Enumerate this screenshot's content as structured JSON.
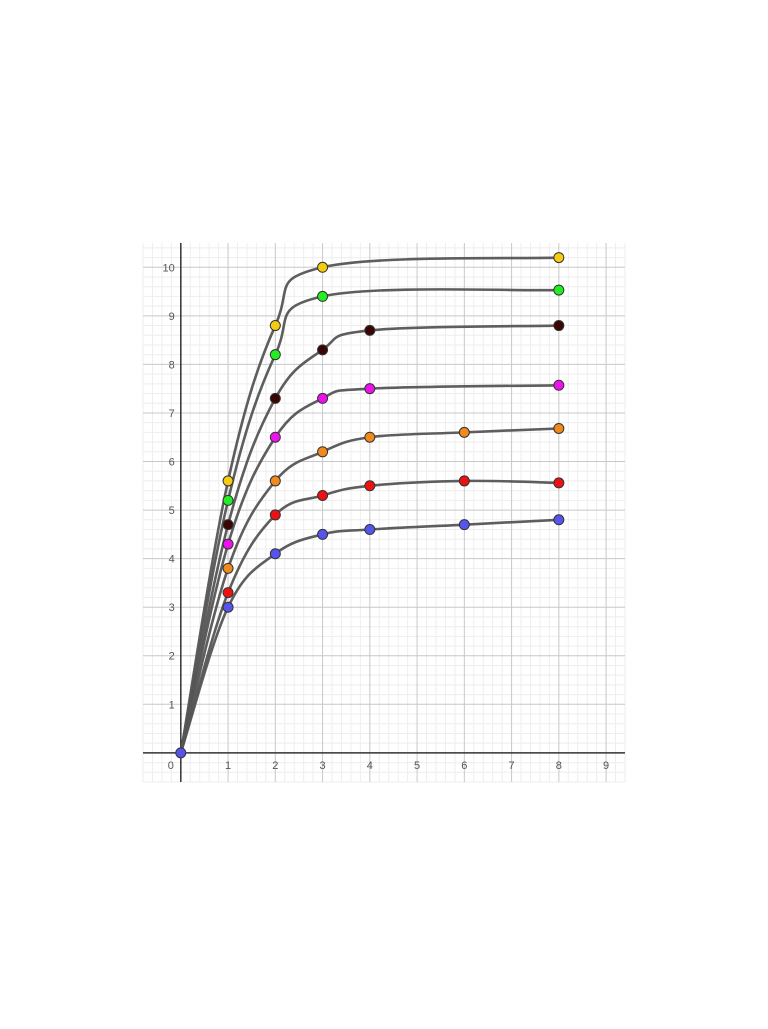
{
  "chart_data": {
    "type": "line",
    "title": "",
    "xlabel": "",
    "ylabel": "",
    "xlim": [
      -0.8,
      9.4
    ],
    "ylim": [
      -0.6,
      10.5
    ],
    "grid": true,
    "x_ticks": [
      "0",
      "1",
      "2",
      "3",
      "4",
      "5",
      "6",
      "7",
      "8",
      "9"
    ],
    "y_ticks": [
      "1",
      "2",
      "3",
      "4",
      "5",
      "6",
      "7",
      "8",
      "9",
      "10"
    ],
    "series": [
      {
        "color": "#5555ee",
        "points": [
          [
            0,
            0
          ],
          [
            1,
            3.0
          ],
          [
            2,
            4.1
          ],
          [
            3,
            4.5
          ],
          [
            4,
            4.6
          ],
          [
            6,
            4.7
          ],
          [
            8,
            4.8
          ]
        ]
      },
      {
        "color": "#ee1111",
        "points": [
          [
            0,
            0
          ],
          [
            1,
            3.3
          ],
          [
            2,
            4.9
          ],
          [
            3,
            5.3
          ],
          [
            4,
            5.5
          ],
          [
            6,
            5.6
          ],
          [
            8,
            5.56
          ]
        ]
      },
      {
        "color": "#f08a1c",
        "points": [
          [
            0,
            0
          ],
          [
            1,
            3.8
          ],
          [
            2,
            5.6
          ],
          [
            3,
            6.2
          ],
          [
            4,
            6.5
          ],
          [
            6,
            6.6
          ],
          [
            8,
            6.68
          ]
        ]
      },
      {
        "color": "#ee11ee",
        "points": [
          [
            0,
            0
          ],
          [
            1,
            4.3
          ],
          [
            2,
            6.5
          ],
          [
            3,
            7.3
          ],
          [
            4,
            7.5
          ],
          [
            8,
            7.57
          ]
        ]
      },
      {
        "color": "#3a0505",
        "points": [
          [
            0,
            0
          ],
          [
            1,
            4.7
          ],
          [
            2,
            7.3
          ],
          [
            3,
            8.3
          ],
          [
            4,
            8.7
          ],
          [
            8,
            8.8
          ]
        ]
      },
      {
        "color": "#22ee22",
        "points": [
          [
            0,
            0
          ],
          [
            1,
            5.2
          ],
          [
            2,
            8.2
          ],
          [
            3,
            9.4
          ],
          [
            8,
            9.53
          ]
        ]
      },
      {
        "color": "#f5cc11",
        "points": [
          [
            0,
            0
          ],
          [
            1,
            5.6
          ],
          [
            2,
            8.8
          ],
          [
            3,
            10.0
          ],
          [
            8,
            10.2
          ]
        ]
      }
    ]
  }
}
